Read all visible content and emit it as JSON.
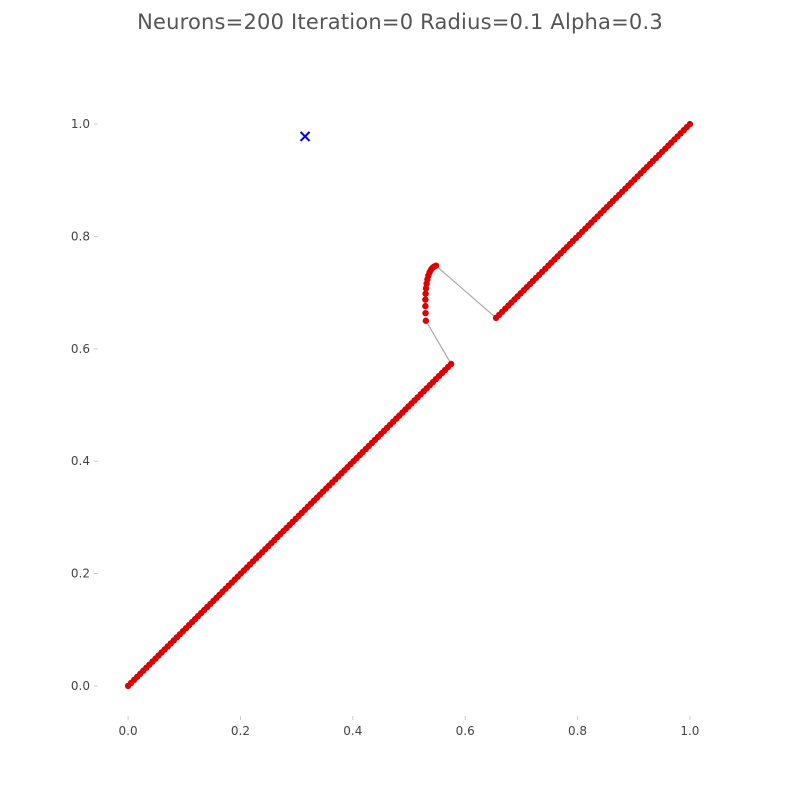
{
  "title": "Neurons=200 Iteration=0 Radius=0.1 Alpha=0.3",
  "chart_data": {
    "type": "scatter",
    "title": "Neurons=200 Iteration=0 Radius=0.1 Alpha=0.3",
    "xlabel": "",
    "ylabel": "",
    "xlim": [
      -0.05,
      1.05
    ],
    "ylim": [
      -0.05,
      1.05
    ],
    "x_ticks": [
      "0.0",
      "0.2",
      "0.4",
      "0.6",
      "0.8",
      "1.0"
    ],
    "y_ticks": [
      "0.0",
      "0.2",
      "0.4",
      "0.6",
      "0.8",
      "1.0"
    ],
    "grid": false,
    "neuron_path": {
      "color": "#dd0000",
      "line_color": "#aaaaaa",
      "marker": "o",
      "segments": [
        {
          "from": [
            0.0,
            0.0
          ],
          "to": [
            0.575,
            0.573
          ]
        },
        {
          "from": [
            0.53,
            0.65
          ],
          "to": [
            0.548,
            0.748
          ],
          "curve_mid": [
            0.532,
            0.72
          ]
        },
        {
          "from": [
            0.655,
            0.655
          ],
          "to": [
            1.0,
            1.0
          ]
        }
      ],
      "connectors": [
        {
          "from": [
            0.575,
            0.573
          ],
          "to": [
            0.53,
            0.65
          ]
        },
        {
          "from": [
            0.548,
            0.748
          ],
          "to": [
            0.655,
            0.655
          ]
        }
      ]
    },
    "sample_point": {
      "x": 0.315,
      "y": 0.978,
      "marker": "x",
      "color": "#0000ee"
    }
  }
}
